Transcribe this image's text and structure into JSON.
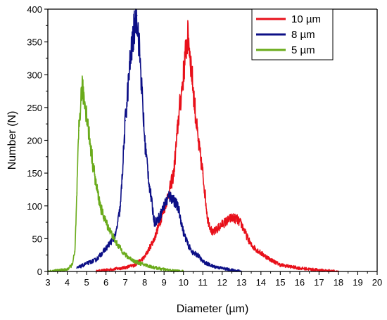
{
  "chart_data": {
    "type": "line",
    "title": "",
    "xlabel": "Diameter (µm)",
    "ylabel": "Number (N)",
    "xlim": [
      3,
      20
    ],
    "ylim": [
      0,
      400
    ],
    "x_ticks": [
      3,
      4,
      5,
      6,
      7,
      8,
      9,
      10,
      11,
      12,
      13,
      14,
      15,
      16,
      17,
      18,
      19,
      20
    ],
    "y_ticks": [
      0,
      50,
      100,
      150,
      200,
      250,
      300,
      350,
      400
    ],
    "grid": false,
    "legend_position": "top-right",
    "series": [
      {
        "name": "10 µm",
        "color": "#e8101a",
        "x": [
          5.5,
          6.0,
          6.5,
          7.0,
          7.5,
          8.0,
          8.5,
          9.0,
          9.25,
          9.5,
          9.75,
          10.0,
          10.15,
          10.25,
          10.5,
          10.75,
          11.0,
          11.25,
          11.5,
          11.75,
          12.0,
          12.5,
          12.75,
          13.0,
          13.25,
          13.5,
          14.0,
          14.5,
          15.0,
          16.0,
          17.0,
          18.0
        ],
        "y": [
          0,
          2,
          4,
          6,
          10,
          22,
          50,
          95,
          120,
          150,
          235,
          300,
          345,
          360,
          280,
          200,
          150,
          80,
          58,
          65,
          72,
          82,
          80,
          72,
          55,
          40,
          28,
          18,
          10,
          5,
          2,
          0
        ]
      },
      {
        "name": "8 µm",
        "color": "#0c0f86",
        "x": [
          4.5,
          5.0,
          5.5,
          6.0,
          6.5,
          6.75,
          7.0,
          7.25,
          7.5,
          7.6,
          7.75,
          8.0,
          8.25,
          8.5,
          8.75,
          9.0,
          9.25,
          9.5,
          9.75,
          10.0,
          10.25,
          10.5,
          10.75,
          11.0,
          11.5,
          12.0,
          12.5,
          13.0
        ],
        "y": [
          5,
          12,
          18,
          35,
          55,
          100,
          230,
          320,
          380,
          390,
          330,
          200,
          130,
          75,
          82,
          100,
          115,
          110,
          95,
          60,
          40,
          28,
          25,
          15,
          8,
          5,
          2,
          0
        ]
      },
      {
        "name": "5 µm",
        "color": "#6aab1b",
        "x": [
          3.0,
          4.0,
          4.25,
          4.4,
          4.5,
          4.6,
          4.75,
          4.85,
          5.0,
          5.25,
          5.5,
          5.75,
          6.0,
          6.25,
          6.5,
          6.75,
          7.0,
          7.5,
          8.0,
          8.5,
          9.0,
          9.5,
          10.0
        ],
        "y": [
          0,
          3,
          10,
          30,
          120,
          215,
          280,
          270,
          240,
          180,
          130,
          95,
          75,
          60,
          45,
          35,
          25,
          15,
          10,
          6,
          3,
          1,
          0
        ]
      }
    ]
  }
}
